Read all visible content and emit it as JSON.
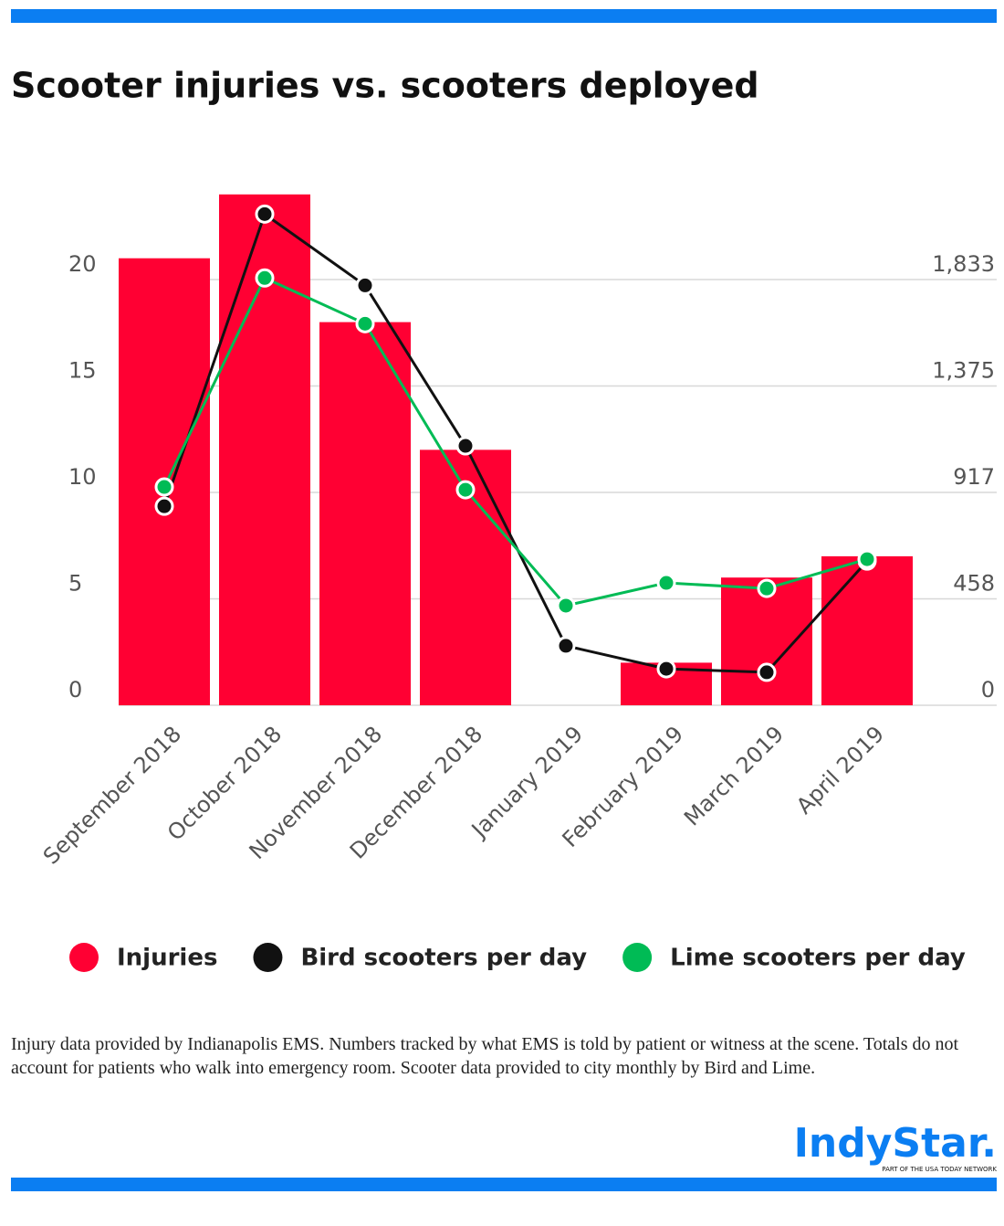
{
  "chart_data": {
    "type": "bar",
    "title": "Scooter injuries vs. scooters deployed",
    "categories": [
      "September 2018",
      "October 2018",
      "November 2018",
      "December 2018",
      "January 2019",
      "February 2019",
      "March 2019",
      "April 2019"
    ],
    "series": [
      {
        "name": "Injuries",
        "color": "#ff0033",
        "type": "bar",
        "values": [
          21,
          24,
          18,
          12,
          0,
          2,
          6,
          7
        ]
      },
      {
        "name": "Bird scooters per day",
        "color": "#111111",
        "type": "line",
        "axis": "y2",
        "values": [
          857,
          2115,
          1808,
          1117,
          256,
          157,
          142,
          621
        ]
      },
      {
        "name": "Lime scooters per day",
        "color": "#00bb55",
        "type": "line",
        "axis": "y2",
        "values": [
          940,
          1840,
          1643,
          928,
          429,
          527,
          503,
          629
        ]
      }
    ],
    "ylim": [
      0,
      25
    ],
    "yticks": [
      0,
      5,
      10,
      15,
      20
    ],
    "y2lim": [
      0,
      2291.5
    ],
    "y2ticks": [
      0,
      458,
      917,
      {
        "value": 1375,
        "label": "1,375"
      },
      {
        "value": 1833,
        "label": "1,833"
      }
    ],
    "grid": true,
    "legend": "bottom",
    "note": "Injury data provided by Indianapolis EMS. Numbers tracked by what EMS is told by patient or witness at the scene. Totals do not account for patients who walk into emergency room. Scooter data provided to city monthly by Bird and Lime.",
    "brand": "IndyStar.",
    "brand_tagline": "PART OF THE USA TODAY NETWORK"
  }
}
